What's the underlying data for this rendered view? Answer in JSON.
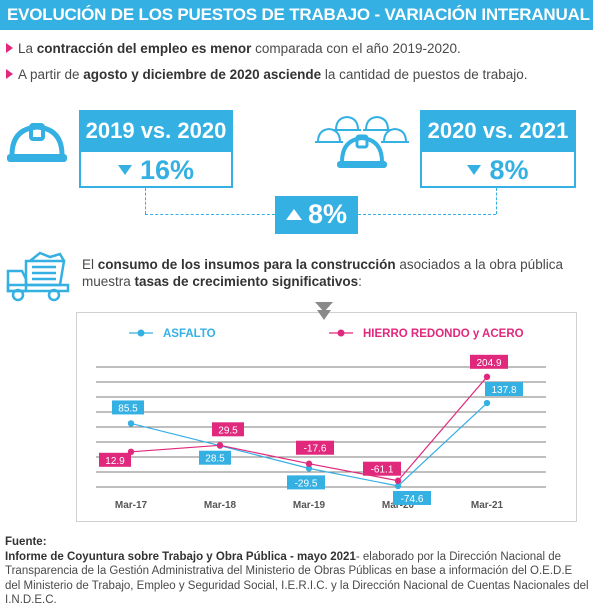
{
  "header": {
    "title": "EVOLUCIÓN DE LOS PUESTOS DE TRABAJO - VARIACIÓN INTERANUAL"
  },
  "bullets": [
    {
      "pre": "La ",
      "bold": "contracción del empleo es menor",
      "post": " comparada con el año 2019-2020."
    },
    {
      "pre": "A partir de ",
      "bold": "agosto y diciembre de 2020 asciende",
      "post": " la cantidad de puestos de trabajo."
    }
  ],
  "comparisons": {
    "left": {
      "label": "2019 vs. 2020",
      "value": "16%",
      "direction": "down"
    },
    "right": {
      "label": "2020 vs. 2021",
      "value": "8%",
      "direction": "down"
    },
    "total": {
      "value": "8%",
      "direction": "up"
    }
  },
  "icons": {
    "helmet": "hard-hat-icon",
    "helmets_group": "hard-hats-group-icon",
    "truck": "dump-truck-icon"
  },
  "insumos": {
    "pre": "El ",
    "bold1": "consumo de los insumos para la construcción",
    "mid": " asociados a la obra pública muestra ",
    "bold2": "tasas de crecimiento significativos",
    "post": ":"
  },
  "colors": {
    "accent": "#35b0e3",
    "pink": "#e0287c"
  },
  "chart_data": {
    "type": "line",
    "categories": [
      "Mar-17",
      "Mar-18",
      "Mar-19",
      "Mar-20",
      "Mar-21"
    ],
    "series": [
      {
        "name": "ASFALTO",
        "color": "#35b0e3",
        "values": [
          85.5,
          28.5,
          -29.5,
          -74.6,
          137.8
        ],
        "labels": [
          "85.5",
          "28.5",
          "-29.5",
          "-74.6",
          "137.8"
        ]
      },
      {
        "name": "HIERRO REDONDO y ACERO",
        "color": "#e0287c",
        "values": [
          12.9,
          29.5,
          -17.6,
          -61.1,
          204.9
        ],
        "labels": [
          "12.9",
          "29.5",
          "-17.6",
          "-61.1",
          "204.9"
        ]
      }
    ],
    "ylim": [
      -90,
      230
    ],
    "grid": true,
    "legend": "top",
    "title": "",
    "xlabel": "",
    "ylabel": ""
  },
  "source": {
    "label": "Fuente:",
    "bold": "Informe de Coyuntura sobre Trabajo y Obra Pública - mayo 2021",
    "text": "- elaborado por la Dirección Nacional de Transparencia de la Gestión Administrativa del Ministerio de Obras Públicas en base a información del O.E.D.E del Ministerio de Trabajo, Empleo y Seguridad Social, I.E.R.I.C. y la Dirección Nacional de Cuentas Nacionales del I.N.D.E.C."
  }
}
